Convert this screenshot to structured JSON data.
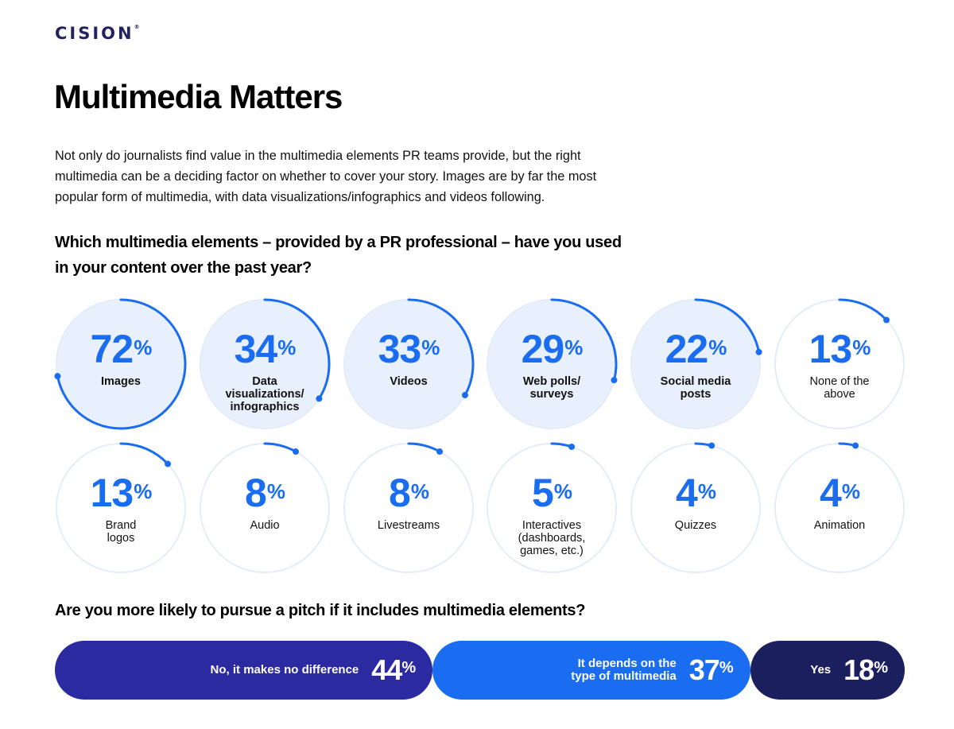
{
  "logo": {
    "text": "CISION",
    "tm": "®"
  },
  "page": {
    "title": "Multimedia Matters",
    "intro": "Not only do journalists find value in the multimedia elements PR teams provide, but the right multimedia can be a deciding factor on whether to cover your story. Images are by far the most popular form of multimedia, with data visualizations/infographics and videos following.",
    "question1": "Which multimedia elements – provided by a PR professional – have you used in your content over the past year?",
    "question2": "Are you more likely to pursue a pitch if it includes multimedia elements?"
  },
  "colors": {
    "accent": "#1a6cf0",
    "fill_light": "#e8f0fd",
    "track": "#e4ecf8",
    "bar_no": "#2b2aa0",
    "bar_depends": "#1a6cf0",
    "bar_yes": "#1c1f5e"
  },
  "chart_data": [
    {
      "type": "radial",
      "title": "Which multimedia elements – provided by a PR professional – have you used in your content over the past year?",
      "unit": "%",
      "items": [
        {
          "label": "Images",
          "value": 72,
          "highlight": true
        },
        {
          "label": "Data visualizations/ infographics",
          "value": 34,
          "highlight": true
        },
        {
          "label": "Videos",
          "value": 33,
          "highlight": true
        },
        {
          "label": "Web polls/ surveys",
          "value": 29,
          "highlight": true
        },
        {
          "label": "Social media posts",
          "value": 22,
          "highlight": true
        },
        {
          "label": "None of the above",
          "value": 13,
          "highlight": false
        },
        {
          "label": "Brand logos",
          "value": 13,
          "highlight": false
        },
        {
          "label": "Audio",
          "value": 8,
          "highlight": false
        },
        {
          "label": "Livestreams",
          "value": 8,
          "highlight": false
        },
        {
          "label": "Interactives (dashboards, games, etc.)",
          "value": 5,
          "highlight": false
        },
        {
          "label": "Quizzes",
          "value": 4,
          "highlight": false
        },
        {
          "label": "Animation",
          "value": 4,
          "highlight": false
        }
      ]
    },
    {
      "type": "bar",
      "title": "Are you more likely to pursue a pitch if it includes multimedia elements?",
      "unit": "%",
      "categories": [
        "No, it makes no difference",
        "It depends on the type of multimedia",
        "Yes"
      ],
      "values": [
        44,
        37,
        18
      ]
    }
  ],
  "bars": [
    {
      "label": "No, it makes no difference",
      "value": "44",
      "unit": "%"
    },
    {
      "label": "It depends on the type of multimedia",
      "value": "37",
      "unit": "%"
    },
    {
      "label": "Yes",
      "value": "18",
      "unit": "%"
    }
  ]
}
